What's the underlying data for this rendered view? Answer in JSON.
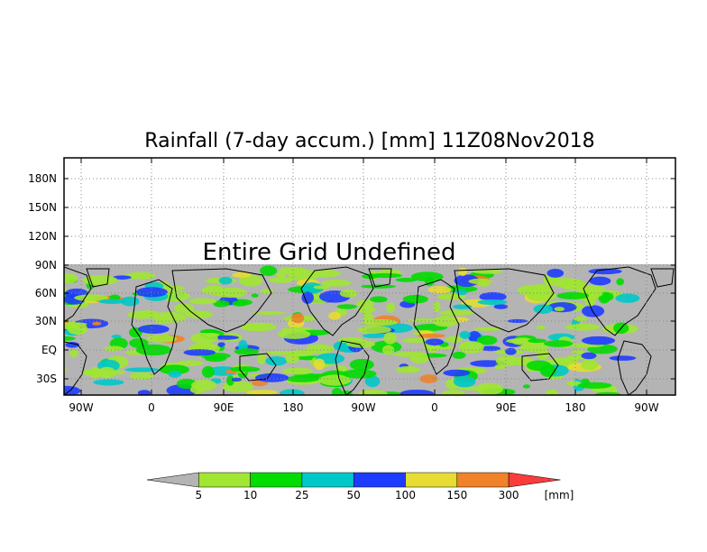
{
  "title": "Rainfall (7-day accum.) [mm] 11Z08Nov2018",
  "overlay_text": "Entire Grid Undefined",
  "lat_ticks": [
    "180N",
    "150N",
    "120N",
    "90N",
    "60N",
    "30N",
    "EQ",
    "30S"
  ],
  "lon_ticks": [
    "90W",
    "0",
    "90E",
    "180",
    "90W",
    "0",
    "90E",
    "180",
    "90W"
  ],
  "colorbar": {
    "labels": [
      "5",
      "10",
      "25",
      "50",
      "100",
      "150",
      "300"
    ],
    "unit": "[mm]",
    "colors": [
      "#b4b4b4",
      "#a0e632",
      "#00dc00",
      "#00c8c8",
      "#1e3cff",
      "#e6dc32",
      "#f08228",
      "#fa3c3c"
    ]
  },
  "colors": {
    "undefined_gray": "#b4b4b4",
    "coast": "#000000",
    "grid": "#888888"
  }
}
